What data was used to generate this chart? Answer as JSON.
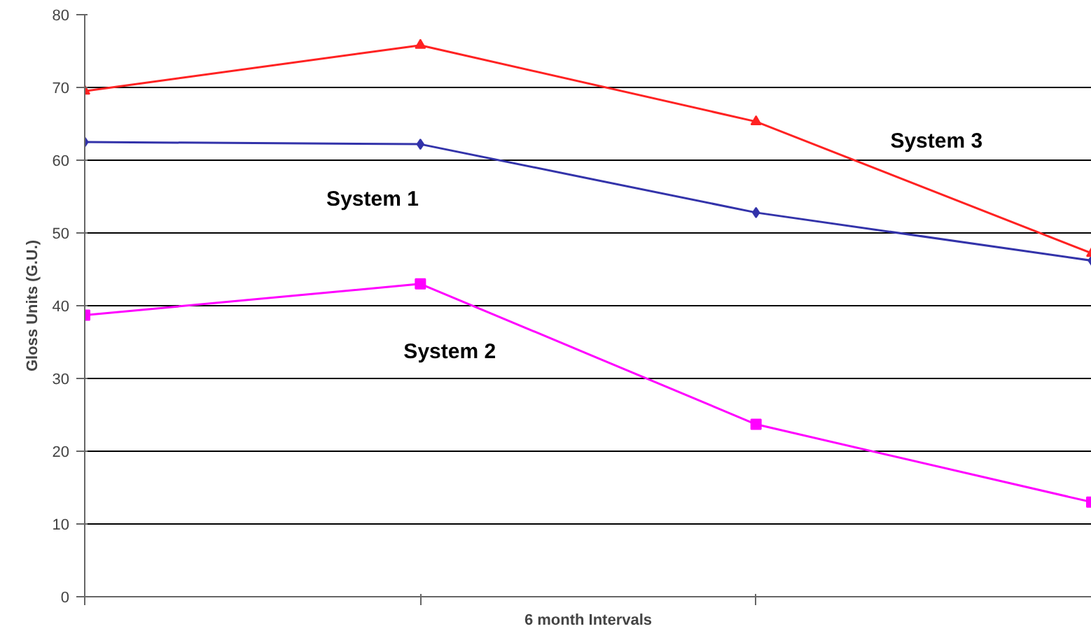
{
  "chart_data": {
    "type": "line",
    "xlabel": "6 month Intervals",
    "ylabel": "Gloss Units (G.U.)",
    "categories": [
      null,
      null,
      null,
      null
    ],
    "series": [
      {
        "name": "System 1",
        "color": "#3333aa",
        "marker": "diamond",
        "values": [
          62.5,
          62.2,
          52.8,
          46.2
        ]
      },
      {
        "name": "System 2",
        "color": "#ff00ff",
        "marker": "square",
        "values": [
          38.7,
          43,
          23.7,
          13
        ]
      },
      {
        "name": "System 3",
        "color": "#ff2222",
        "marker": "triangle",
        "values": [
          69.5,
          75.8,
          65.3,
          47.2
        ]
      }
    ],
    "ylim": [
      0,
      80
    ],
    "yticks": [
      0,
      10,
      20,
      30,
      40,
      50,
      60,
      70,
      80
    ],
    "grid": "y",
    "line_style": "solid"
  }
}
